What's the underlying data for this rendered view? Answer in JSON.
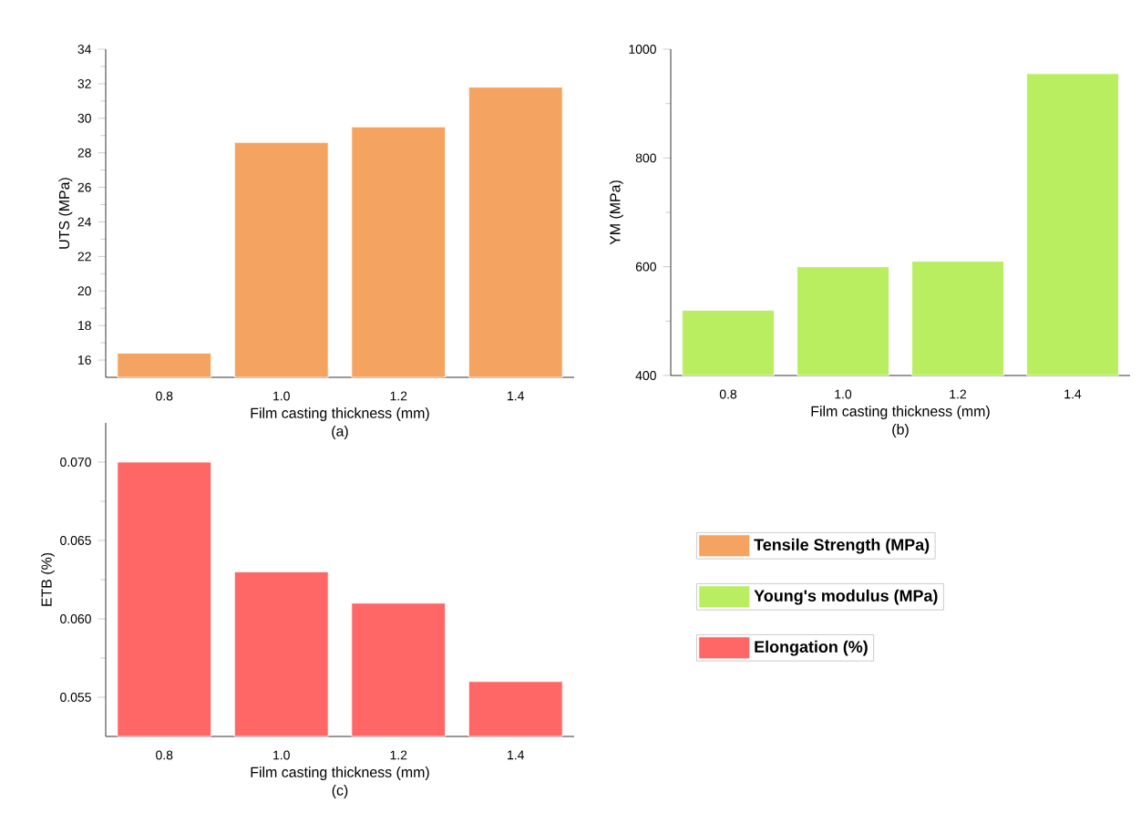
{
  "chart_data": [
    {
      "type": "bar",
      "xlabel": "Film casting thickness (mm)",
      "ylabel": "UTS (MPa)",
      "annotations": [
        "(a)"
      ],
      "categories": [
        "0.8",
        "1.0",
        "1.2",
        "1.4"
      ],
      "ylim": [
        15,
        34
      ],
      "yticks": [
        16,
        18,
        20,
        22,
        24,
        26,
        28,
        30,
        32,
        34
      ],
      "legend": "bottom right",
      "series": [
        {
          "name": "Tensile Strength (MPa)",
          "color": "#f4a460",
          "values": [
            16.4,
            28.6,
            29.5,
            31.8
          ]
        }
      ]
    },
    {
      "type": "bar",
      "xlabel": "Film casting thickness (mm)",
      "ylabel": "YM (MPa)",
      "annotations": [
        "(b)"
      ],
      "categories": [
        "0.8",
        "1.0",
        "1.2",
        "1.4"
      ],
      "ylim": [
        400,
        1000
      ],
      "yticks": [
        400,
        600,
        800,
        1000
      ],
      "legend": "bottom",
      "series": [
        {
          "name": "Young's modulus (MPa)",
          "color": "#b8ee60",
          "values": [
            520,
            600,
            610,
            955
          ]
        }
      ]
    },
    {
      "type": "bar",
      "xlabel": "Film casting thickness (mm)",
      "ylabel": "ETB (%)",
      "annotations": [
        "(c)"
      ],
      "categories": [
        "0.8",
        "1.0",
        "1.2",
        "1.4"
      ],
      "ylim": [
        0.0525,
        0.0725
      ],
      "yticks": [
        {
          "value": 0.055,
          "label": "0.055"
        },
        {
          "value": 0.06,
          "label": "0.060"
        },
        {
          "value": 0.065,
          "label": "0.065"
        },
        {
          "value": 0.07,
          "label": "0.070"
        }
      ],
      "legend": "right",
      "series": [
        {
          "name": "Elongation (%)",
          "color": "#ff6666",
          "values": [
            0.07,
            0.063,
            0.061,
            0.056
          ]
        }
      ]
    }
  ]
}
